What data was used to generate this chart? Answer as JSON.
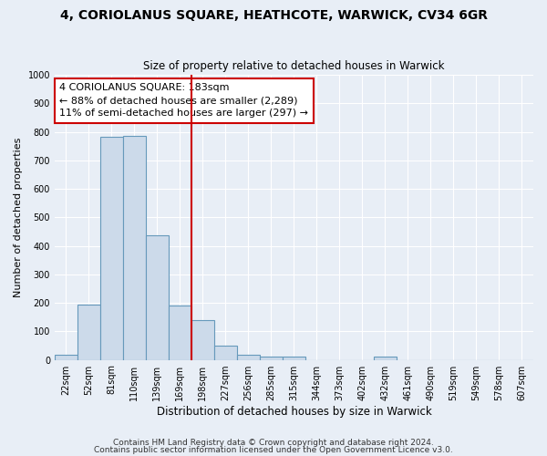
{
  "title": "4, CORIOLANUS SQUARE, HEATHCOTE, WARWICK, CV34 6GR",
  "subtitle": "Size of property relative to detached houses in Warwick",
  "xlabel": "Distribution of detached houses by size in Warwick",
  "ylabel": "Number of detached properties",
  "bar_color": "#ccdaea",
  "bar_edge_color": "#6699bb",
  "bg_color": "#e8eef6",
  "grid_color": "#ffffff",
  "categories": [
    "22sqm",
    "52sqm",
    "81sqm",
    "110sqm",
    "139sqm",
    "169sqm",
    "198sqm",
    "227sqm",
    "256sqm",
    "285sqm",
    "315sqm",
    "344sqm",
    "373sqm",
    "402sqm",
    "432sqm",
    "461sqm",
    "490sqm",
    "519sqm",
    "549sqm",
    "578sqm",
    "607sqm"
  ],
  "values": [
    18,
    193,
    783,
    785,
    437,
    192,
    140,
    50,
    18,
    10,
    10,
    0,
    0,
    0,
    10,
    0,
    0,
    0,
    0,
    0,
    0
  ],
  "vline_x": 5.5,
  "vline_color": "#cc0000",
  "annotation_title": "4 CORIOLANUS SQUARE: 183sqm",
  "annotation_line1": "← 88% of detached houses are smaller (2,289)",
  "annotation_line2": "11% of semi-detached houses are larger (297) →",
  "annotation_box_color": "#ffffff",
  "annotation_border_color": "#cc0000",
  "ylim": [
    0,
    1000
  ],
  "yticks": [
    0,
    100,
    200,
    300,
    400,
    500,
    600,
    700,
    800,
    900,
    1000
  ],
  "footer1": "Contains HM Land Registry data © Crown copyright and database right 2024.",
  "footer2": "Contains public sector information licensed under the Open Government Licence v3.0."
}
